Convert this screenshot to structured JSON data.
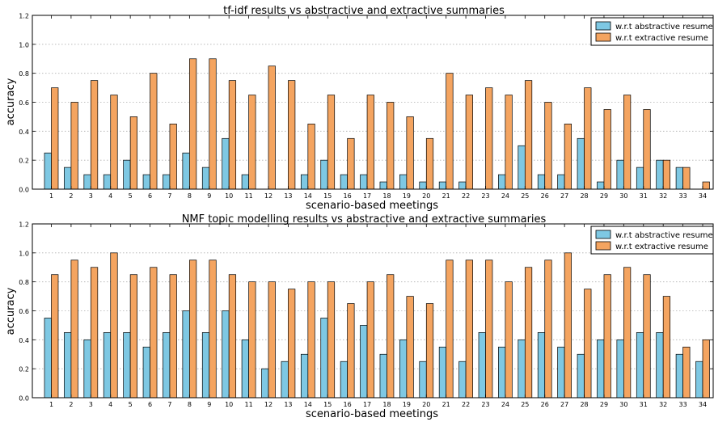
{
  "colors": {
    "abstractive": "#7ec8e3",
    "extractive": "#f4a460",
    "grid": "#b0b0b0",
    "axis": "#000000"
  },
  "chart_data": [
    {
      "type": "bar",
      "title": "tf-idf results vs abstractive and extractive summaries",
      "xlabel": "scenario-based meetings",
      "ylabel": "accuracy",
      "ylim": [
        0,
        1.2
      ],
      "yticks": [
        "0.0",
        "0.2",
        "0.4",
        "0.6",
        "0.8",
        "1.0",
        "1.2"
      ],
      "grid": "horizontal dotted",
      "legend_position": "top-right",
      "categories": [
        "1",
        "2",
        "3",
        "4",
        "5",
        "6",
        "7",
        "8",
        "9",
        "10",
        "11",
        "12",
        "13",
        "14",
        "15",
        "16",
        "17",
        "18",
        "19",
        "20",
        "21",
        "22",
        "23",
        "24",
        "25",
        "26",
        "27",
        "28",
        "29",
        "30",
        "31",
        "32",
        "33",
        "34"
      ],
      "series": [
        {
          "name": "w.r.t abstractive resume",
          "values": [
            0.25,
            0.15,
            0.1,
            0.1,
            0.2,
            0.1,
            0.1,
            0.25,
            0.15,
            0.35,
            0.1,
            0.0,
            0.0,
            0.1,
            0.2,
            0.1,
            0.1,
            0.05,
            0.1,
            0.05,
            0.05,
            0.05,
            0.0,
            0.1,
            0.3,
            0.1,
            0.1,
            0.35,
            0.05,
            0.2,
            0.15,
            0.2,
            0.15,
            0.0
          ]
        },
        {
          "name": "w.r.t extractive resume",
          "values": [
            0.7,
            0.6,
            0.75,
            0.65,
            0.5,
            0.8,
            0.45,
            0.9,
            0.9,
            0.75,
            0.65,
            0.85,
            0.75,
            0.45,
            0.65,
            0.35,
            0.65,
            0.6,
            0.5,
            0.35,
            0.8,
            0.65,
            0.7,
            0.65,
            0.75,
            0.6,
            0.45,
            0.7,
            0.55,
            0.65,
            0.55,
            0.2,
            0.15,
            0.05
          ]
        }
      ]
    },
    {
      "type": "bar",
      "title": "NMF topic modelling results vs abstractive and extractive summaries",
      "xlabel": "scenario-based meetings",
      "ylabel": "accuracy",
      "ylim": [
        0,
        1.2
      ],
      "yticks": [
        "0.0",
        "0.2",
        "0.4",
        "0.6",
        "0.8",
        "1.0",
        "1.2"
      ],
      "grid": "horizontal dotted",
      "legend_position": "top-right",
      "categories": [
        "1",
        "2",
        "3",
        "4",
        "5",
        "6",
        "7",
        "8",
        "9",
        "10",
        "11",
        "12",
        "13",
        "14",
        "15",
        "16",
        "17",
        "18",
        "19",
        "20",
        "21",
        "22",
        "23",
        "24",
        "25",
        "26",
        "27",
        "28",
        "29",
        "30",
        "31",
        "32",
        "33",
        "34"
      ],
      "series": [
        {
          "name": "w.r.t abstractive resume",
          "values": [
            0.55,
            0.45,
            0.4,
            0.45,
            0.45,
            0.35,
            0.45,
            0.6,
            0.45,
            0.6,
            0.4,
            0.2,
            0.25,
            0.3,
            0.55,
            0.25,
            0.5,
            0.3,
            0.4,
            0.25,
            0.35,
            0.25,
            0.45,
            0.35,
            0.4,
            0.45,
            0.35,
            0.3,
            0.4,
            0.4,
            0.45,
            0.45,
            0.3,
            0.25
          ]
        },
        {
          "name": "w.r.t extractive resume",
          "values": [
            0.85,
            0.95,
            0.9,
            1.0,
            0.85,
            0.9,
            0.85,
            0.95,
            0.95,
            0.85,
            0.8,
            0.8,
            0.75,
            0.8,
            0.8,
            0.65,
            0.8,
            0.85,
            0.7,
            0.65,
            0.95,
            0.95,
            0.95,
            0.8,
            0.9,
            0.95,
            1.0,
            0.75,
            0.85,
            0.9,
            0.85,
            0.7,
            0.35,
            0.4
          ]
        }
      ]
    }
  ]
}
